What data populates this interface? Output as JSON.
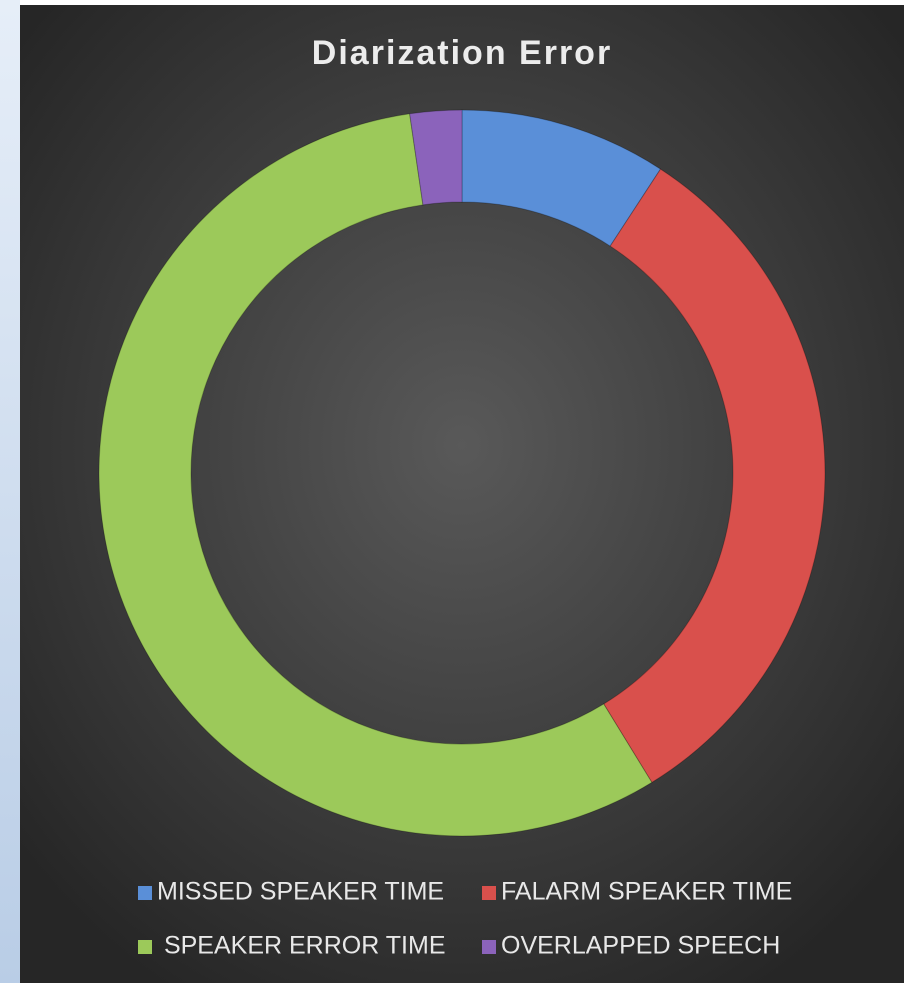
{
  "chart_data": {
    "type": "donut",
    "title": "Diarization Error",
    "categories": [
      "MISSED SPEAKER TIME",
      "FALARM SPEAKER TIME",
      " SPEAKER ERROR TIME",
      "OVERLAPPED SPEECH"
    ],
    "values": [
      9.2,
      32.0,
      56.4,
      2.3
    ],
    "colors": [
      "#5a8fd8",
      "#d9504c",
      "#9cc95a",
      "#8b63bb"
    ],
    "legend": "bottom"
  }
}
